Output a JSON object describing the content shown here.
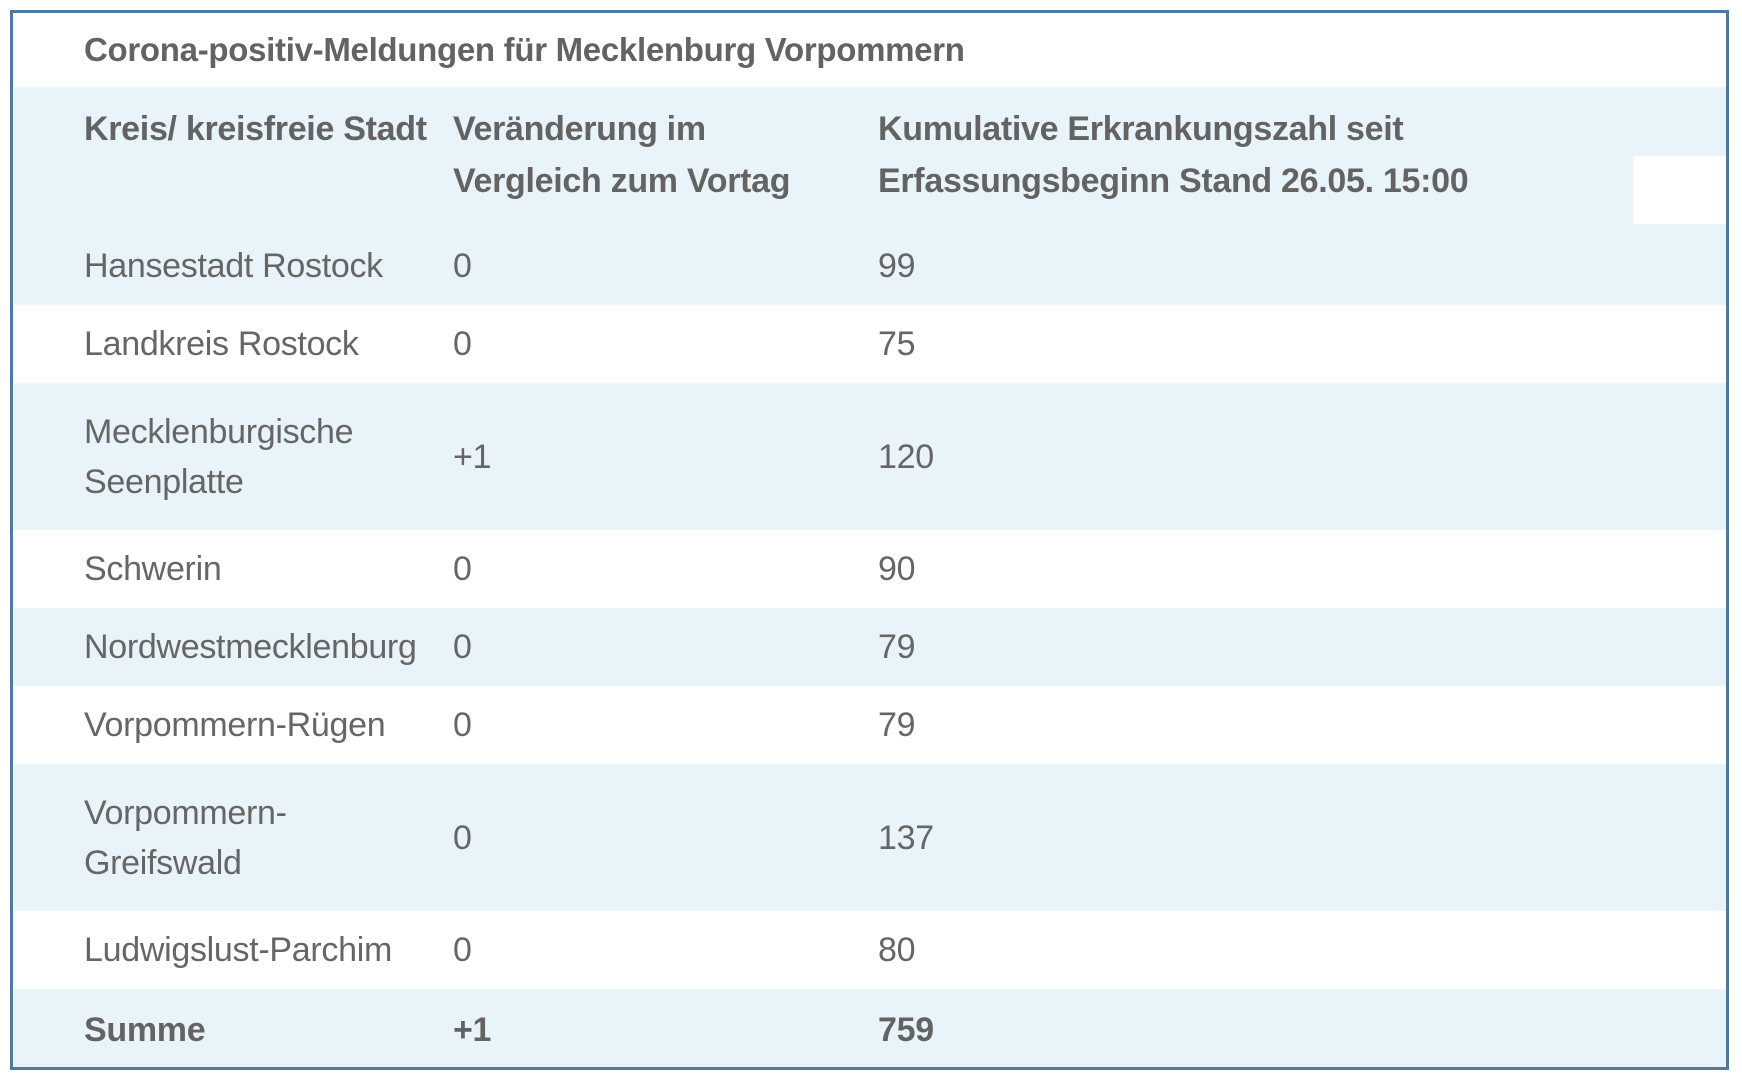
{
  "colors": {
    "frame_border": "#4d7a9e",
    "stripe_blue": "#e8f4fa",
    "row_white": "#ffffff",
    "text_gray": "#666666",
    "bold_text_gray": "#636363"
  },
  "table": {
    "title": "Corona-positiv-Meldungen für Mecklenburg Vorpommern",
    "columns": [
      {
        "label": "Kreis/ kreisfreie Stadt"
      },
      {
        "label": "Veränderung im\nVergleich zum Vortag"
      },
      {
        "label": "Kumulative Erkrankungszahl seit\nErfassungsbeginn Stand 26.05. 15:00"
      }
    ],
    "rows": [
      {
        "kreis": "Hansestadt Rostock",
        "veraenderung": "0",
        "kumulativ": "99"
      },
      {
        "kreis": "Landkreis Rostock",
        "veraenderung": "0",
        "kumulativ": "75"
      },
      {
        "kreis": "Mecklenburgische\nSeenplatte",
        "veraenderung": "+1",
        "kumulativ": "120"
      },
      {
        "kreis": "Schwerin",
        "veraenderung": "0",
        "kumulativ": "90"
      },
      {
        "kreis": "Nordwestmecklenburg",
        "veraenderung": "0",
        "kumulativ": "79"
      },
      {
        "kreis": "Vorpommern-Rügen",
        "veraenderung": "0",
        "kumulativ": "79"
      },
      {
        "kreis": "Vorpommern-\nGreifswald",
        "veraenderung": "0",
        "kumulativ": "137"
      },
      {
        "kreis": "Ludwigslust-Parchim",
        "veraenderung": "0",
        "kumulativ": "80"
      }
    ],
    "total_row": {
      "kreis": "Summe",
      "veraenderung": "+1",
      "kumulativ": "759"
    }
  }
}
